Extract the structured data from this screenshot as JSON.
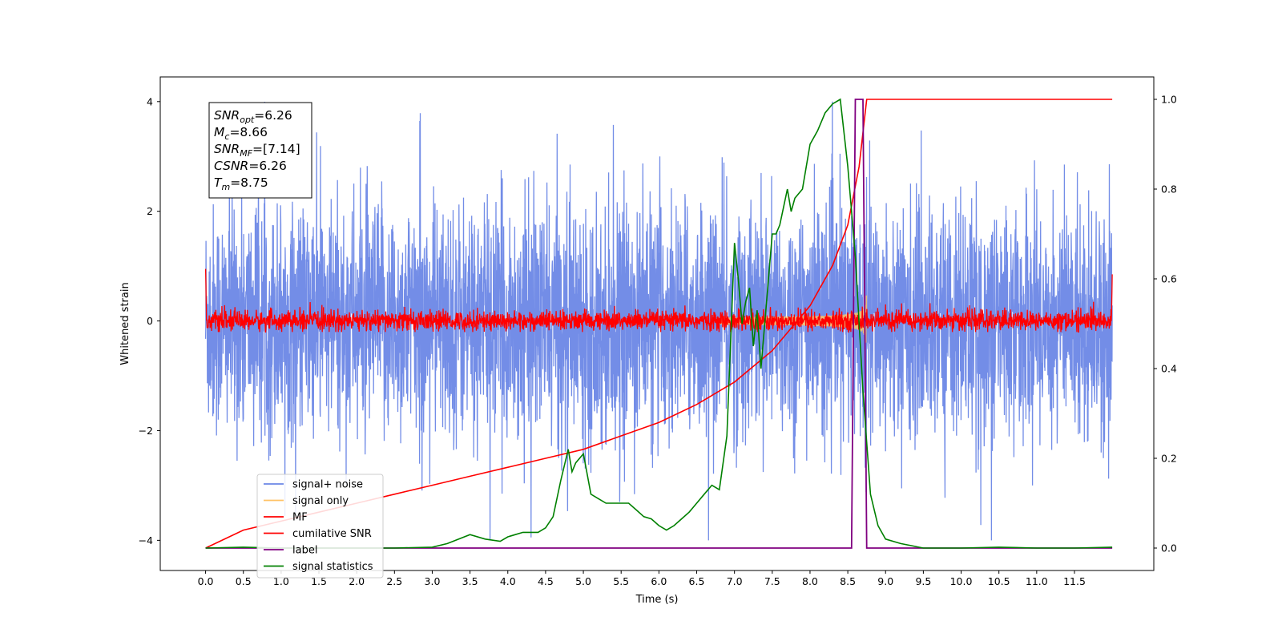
{
  "chart_data": {
    "type": "line",
    "title": "",
    "xlabel": "Time (s)",
    "ylabel": "Whitened strain",
    "xlim": [
      -0.6,
      12.55
    ],
    "ylim": [
      -4.55,
      4.45
    ],
    "y2lim": [
      -0.05,
      1.05
    ],
    "x_ticks": [
      0.0,
      0.5,
      1.0,
      1.5,
      2.0,
      2.5,
      3.0,
      3.5,
      4.0,
      4.5,
      5.0,
      5.5,
      6.0,
      6.5,
      7.0,
      7.5,
      8.0,
      8.5,
      9.0,
      9.5,
      10.0,
      10.5,
      11.0,
      11.5
    ],
    "x_tick_labels": [
      "0.0",
      "0.5",
      "1.0",
      "1.5",
      "2.0",
      "2.5",
      "3.0",
      "3.5",
      "4.0",
      "4.5",
      "5.0",
      "5.5",
      "6.0",
      "6.5",
      "7.0",
      "7.5",
      "8.0",
      "8.5",
      "9.0",
      "9.5",
      "10.0",
      "10.5",
      "11.0",
      "11.5"
    ],
    "y_ticks": [
      4,
      2,
      0,
      -2,
      -4
    ],
    "y_tick_labels": [
      "4",
      "2",
      "0",
      "−2",
      "−4"
    ],
    "y2_ticks": [
      1.0,
      0.8,
      0.6,
      0.4,
      0.2,
      0.0
    ],
    "y2_tick_labels": [
      "1.0",
      "0.8",
      "0.6",
      "0.4",
      "0.2",
      "0.0"
    ],
    "grid": false,
    "legend_position": "lower-left",
    "colors": {
      "signal_noise": "#6b87e6",
      "signal_only": "#ffc266",
      "mf": "#ff0000",
      "csnr": "#ff0000",
      "label": "#800080",
      "stats": "#008000"
    },
    "series": [
      {
        "name": "signal+ noise",
        "axis": "left",
        "kind": "noise",
        "amplitude_range": [
          -4.0,
          4.0
        ],
        "t_range": [
          0.0,
          12.0
        ]
      },
      {
        "name": "signal only",
        "axis": "left",
        "kind": "chirp",
        "peak_time": 8.75,
        "peak_amplitude": 0.6
      },
      {
        "name": "MF",
        "axis": "left",
        "kind": "noise",
        "amplitude_range": [
          -0.2,
          0.35
        ],
        "t_range": [
          0.0,
          12.0
        ]
      },
      {
        "name": "cumilative SNR",
        "axis": "right",
        "x": [
          0.0,
          0.5,
          1.0,
          1.5,
          2.0,
          2.5,
          3.0,
          3.5,
          4.0,
          4.5,
          5.0,
          5.5,
          6.0,
          6.5,
          7.0,
          7.5,
          8.0,
          8.3,
          8.5,
          8.65,
          8.75,
          12.0
        ],
        "y": [
          0.0,
          0.04,
          0.06,
          0.08,
          0.1,
          0.12,
          0.14,
          0.16,
          0.18,
          0.2,
          0.22,
          0.25,
          0.28,
          0.32,
          0.37,
          0.44,
          0.54,
          0.63,
          0.72,
          0.85,
          1.0,
          1.0
        ]
      },
      {
        "name": "label",
        "axis": "right",
        "x": [
          0.0,
          8.55,
          8.6,
          8.7,
          8.75,
          12.0
        ],
        "y": [
          0.0,
          0.0,
          1.0,
          1.0,
          0.0,
          0.0
        ]
      },
      {
        "name": "signal statistics",
        "axis": "right",
        "x": [
          0.0,
          0.5,
          1.0,
          1.5,
          2.0,
          2.5,
          3.0,
          3.2,
          3.5,
          3.7,
          3.9,
          4.0,
          4.1,
          4.2,
          4.4,
          4.5,
          4.6,
          4.7,
          4.8,
          4.85,
          4.9,
          5.0,
          5.1,
          5.2,
          5.3,
          5.4,
          5.5,
          5.6,
          5.7,
          5.8,
          5.9,
          6.0,
          6.1,
          6.2,
          6.3,
          6.4,
          6.5,
          6.6,
          6.7,
          6.8,
          6.9,
          7.0,
          7.05,
          7.1,
          7.15,
          7.2,
          7.25,
          7.3,
          7.35,
          7.4,
          7.45,
          7.5,
          7.55,
          7.6,
          7.7,
          7.75,
          7.8,
          7.9,
          8.0,
          8.1,
          8.2,
          8.3,
          8.4,
          8.5,
          8.6,
          8.7,
          8.8,
          8.9,
          9.0,
          9.2,
          9.5,
          10.0,
          10.5,
          11.0,
          11.5,
          12.0
        ],
        "y": [
          0.0,
          0.002,
          0.0,
          0.0,
          0.0,
          0.0,
          0.002,
          0.01,
          0.03,
          0.02,
          0.015,
          0.025,
          0.03,
          0.035,
          0.035,
          0.045,
          0.07,
          0.15,
          0.22,
          0.17,
          0.19,
          0.21,
          0.12,
          0.11,
          0.1,
          0.1,
          0.1,
          0.1,
          0.085,
          0.07,
          0.065,
          0.05,
          0.04,
          0.05,
          0.065,
          0.08,
          0.1,
          0.12,
          0.14,
          0.13,
          0.25,
          0.68,
          0.6,
          0.5,
          0.55,
          0.58,
          0.45,
          0.53,
          0.4,
          0.5,
          0.6,
          0.7,
          0.7,
          0.72,
          0.8,
          0.75,
          0.78,
          0.8,
          0.9,
          0.93,
          0.97,
          0.99,
          1.0,
          0.85,
          0.65,
          0.35,
          0.12,
          0.05,
          0.02,
          0.01,
          0.0,
          0.0,
          0.002,
          0.0,
          0.0,
          0.002
        ]
      }
    ],
    "annotations": [
      {
        "label": "SNR",
        "sub": "opt",
        "value": "=6.26"
      },
      {
        "label": "M",
        "sub": "c",
        "value": "=8.66"
      },
      {
        "label": "SNR",
        "sub": "MF",
        "value": "=[7.14]"
      },
      {
        "label": "CSNR",
        "sub": "",
        "value": "=6.26"
      },
      {
        "label": "T",
        "sub": "m",
        "value": "=8.75"
      }
    ]
  }
}
